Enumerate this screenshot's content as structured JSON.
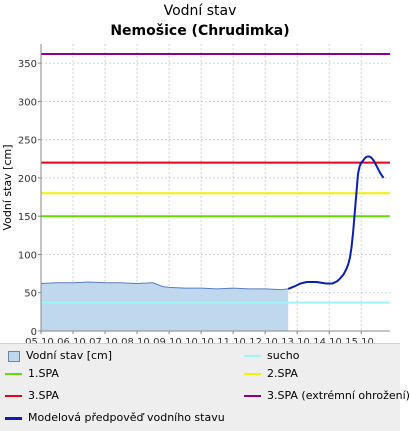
{
  "chart_data": {
    "type": "line",
    "title": "Vodní stav",
    "subtitle": "Nemošice (Chrudimka)",
    "ylabel": "Vodní stav [cm]",
    "xlabel": "",
    "ylim": [
      0,
      375
    ],
    "yticks": [
      0,
      50,
      100,
      150,
      200,
      250,
      300,
      350
    ],
    "xlim": [
      0,
      10.9
    ],
    "xtick_labels": [
      "05.10.",
      "06.10.",
      "07.10.",
      "08.10.",
      "09.10.",
      "10.10.",
      "11.10.",
      "12.10.",
      "13.10.",
      "14.10.",
      "15.10."
    ],
    "grid": true,
    "thresholds": [
      {
        "name": "1.SPA",
        "value": 150,
        "color": "#66dd00"
      },
      {
        "name": "2.SPA",
        "value": 180,
        "color": "#f2f200"
      },
      {
        "name": "3.SPA",
        "value": 220,
        "color": "#e8001c"
      },
      {
        "name": "3.SPA (extrémní ohrožení)",
        "value": 362,
        "color": "#8a008a"
      },
      {
        "name": "sucho",
        "value": 37,
        "color": "#9ff5f5"
      }
    ],
    "series": [
      {
        "name": "Vodní stav [cm]",
        "kind": "area",
        "color": "#bfd8ee",
        "edge": "#5a7dc2",
        "x": [
          0,
          0.5,
          1.0,
          1.5,
          2.0,
          2.5,
          3.0,
          3.5,
          3.8,
          4.0,
          4.5,
          5.0,
          5.5,
          6.0,
          6.5,
          7.0,
          7.5,
          7.72
        ],
        "y": [
          62,
          63,
          63,
          64,
          63,
          63,
          62,
          63,
          58,
          57,
          56,
          56,
          55,
          56,
          55,
          55,
          54,
          55
        ]
      },
      {
        "name": "Modelová předpověď vodního stavu",
        "kind": "line",
        "color": "#0a1fb0",
        "x": [
          7.72,
          7.9,
          8.1,
          8.3,
          8.6,
          8.9,
          9.1,
          9.25,
          9.35,
          9.45,
          9.55,
          9.6,
          9.65,
          9.7,
          9.75,
          9.8,
          9.85,
          9.9,
          9.95,
          10.0,
          10.05,
          10.1,
          10.15,
          10.2,
          10.25,
          10.3,
          10.35,
          10.4,
          10.45,
          10.5,
          10.55,
          10.6,
          10.65,
          10.7
        ],
        "y": [
          55,
          58,
          62,
          64,
          64,
          62,
          62,
          65,
          69,
          74,
          82,
          88,
          96,
          110,
          130,
          155,
          180,
          205,
          215,
          220,
          222,
          225,
          227,
          228,
          228,
          227,
          225,
          222,
          218,
          214,
          210,
          206,
          203,
          200
        ]
      }
    ]
  },
  "legend": [
    {
      "label": "Vodní stav [cm]",
      "type": "box",
      "color": "#bfd8ee"
    },
    {
      "label": "sucho",
      "type": "line",
      "color": "#9ff5f5"
    },
    {
      "label": "1.SPA",
      "type": "line",
      "color": "#66dd00"
    },
    {
      "label": "2.SPA",
      "type": "line",
      "color": "#f2f200"
    },
    {
      "label": "3.SPA",
      "type": "line",
      "color": "#e8001c"
    },
    {
      "label": "3.SPA (extrémní ohrožení)",
      "type": "line",
      "color": "#8a008a"
    },
    {
      "label": "Modelová předpověď vodního stavu",
      "type": "line",
      "color": "#0a1fb0"
    }
  ]
}
